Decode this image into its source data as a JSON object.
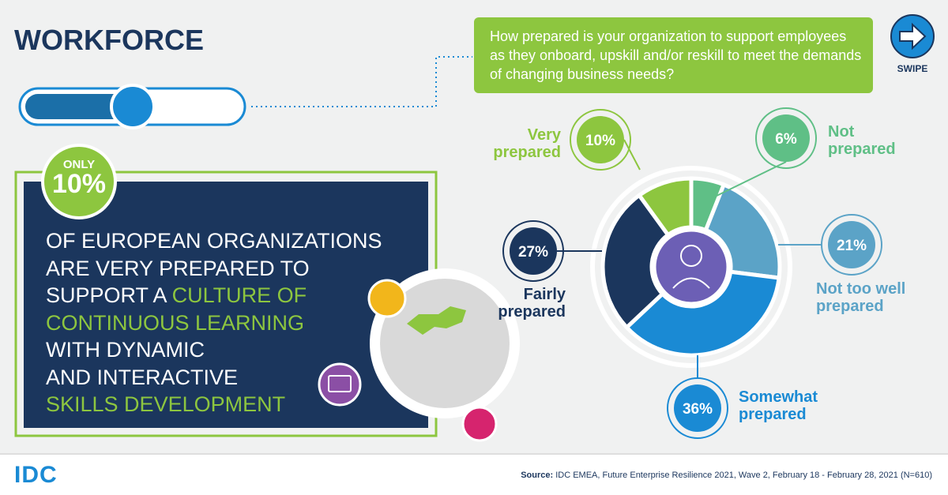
{
  "header": {
    "title": "WORKFORCE",
    "swipe": "SWIPE"
  },
  "question": "How prepared is your organization to support employees as they onboard, upskill and/or reskill to meet the demands of changing business needs?",
  "callout": {
    "badge_top": "ONLY",
    "badge_value": "10%",
    "statement_lines": [
      [
        {
          "text": "OF EUROPEAN ORGANIZATIONS",
          "color": "#ffffff"
        }
      ],
      [
        {
          "text": "ARE VERY PREPARED TO",
          "color": "#ffffff"
        }
      ],
      [
        {
          "text": "SUPPORT A",
          "color": "#ffffff"
        },
        {
          "text": "CULTURE OF",
          "color": "#8dc63f"
        }
      ],
      [
        {
          "text": "CONTINUOUS LEARNING",
          "color": "#8dc63f"
        }
      ],
      [
        {
          "text": "WITH DYNAMIC",
          "color": "#ffffff"
        }
      ],
      [
        {
          "text": "AND INTERACTIVE",
          "color": "#ffffff"
        }
      ],
      [
        {
          "text": "SKILLS DEVELOPMENT",
          "color": "#8dc63f"
        }
      ]
    ]
  },
  "chart_data": {
    "type": "donut",
    "categories": [
      "Not prepared",
      "Not too well prepared",
      "Somewhat prepared",
      "Fairly prepared",
      "Very prepared"
    ],
    "values": [
      6,
      21,
      36,
      27,
      10
    ],
    "value_labels": [
      "6%",
      "21%",
      "36%",
      "27%",
      "10%"
    ],
    "colors": [
      "#5fbf86",
      "#5ba3c7",
      "#1a8ad4",
      "#1b365d",
      "#8dc63f"
    ]
  },
  "footer": {
    "logo": "IDC",
    "source_label": "Source:",
    "source": "IDC EMEA, Future Enterprise Resilience 2021, Wave 2, February 18 - February 28, 2021 (N=610)"
  }
}
